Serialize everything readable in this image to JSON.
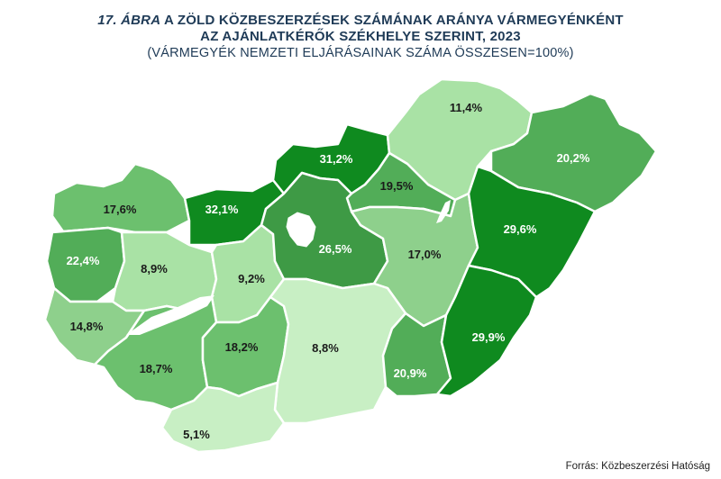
{
  "title": {
    "number": "17. ÁBRA",
    "line1_rest": " A ZÖLD KÖZBESZERZÉSEK SZÁMÁNAK ARÁNYA VÁRMEGYÉNKÉNT",
    "line2": "AZ AJÁNLATKÉRŐK SZÉKHELYE SZERINT, 2023",
    "subtitle": "(VÁRMEGYÉK NEMZETI ELJÁRÁSAINAK SZÁMA ÖSSZESEN=100%)"
  },
  "source": "Forrás: Közbeszerzési Hatóság",
  "colors": {
    "shade_1": "#c8efc4",
    "shade_2": "#a9e2a5",
    "shade_3": "#8ed08c",
    "shade_4": "#6cc06e",
    "shade_5": "#52ad58",
    "shade_6": "#3e9a45",
    "shade_7": "#0f8a1f",
    "dark_label": "#1a1a1a",
    "light_label": "#ffffff",
    "budapest": "#ffffff",
    "lake": "#ffffff"
  },
  "counties": [
    {
      "id": "gyor",
      "value": "17,6%",
      "shade": "shade_4",
      "label_color": "dark_label"
    },
    {
      "id": "komarom",
      "value": "32,1%",
      "shade": "shade_7",
      "label_color": "light_label"
    },
    {
      "id": "nograd",
      "value": "31,2%",
      "shade": "shade_7",
      "label_color": "light_label"
    },
    {
      "id": "borsod",
      "value": "11,4%",
      "shade": "shade_2",
      "label_color": "dark_label"
    },
    {
      "id": "szabolcs",
      "value": "20,2%",
      "shade": "shade_5",
      "label_color": "light_label"
    },
    {
      "id": "heves",
      "value": "19,5%",
      "shade": "shade_5",
      "label_color": "dark_label"
    },
    {
      "id": "vas",
      "value": "22,4%",
      "shade": "shade_5",
      "label_color": "light_label"
    },
    {
      "id": "veszprem",
      "value": "8,9%",
      "shade": "shade_2",
      "label_color": "dark_label"
    },
    {
      "id": "fejer",
      "value": "9,2%",
      "shade": "shade_2",
      "label_color": "dark_label"
    },
    {
      "id": "pest",
      "value": "26,5%",
      "shade": "shade_6",
      "label_color": "light_label"
    },
    {
      "id": "jasz",
      "value": "17,0%",
      "shade": "shade_3",
      "label_color": "dark_label"
    },
    {
      "id": "hajdu",
      "value": "29,6%",
      "shade": "shade_7",
      "label_color": "light_label"
    },
    {
      "id": "zala",
      "value": "14,8%",
      "shade": "shade_3",
      "label_color": "dark_label"
    },
    {
      "id": "somogy",
      "value": "18,7%",
      "shade": "shade_4",
      "label_color": "dark_label"
    },
    {
      "id": "tolna",
      "value": "18,2%",
      "shade": "shade_4",
      "label_color": "dark_label"
    },
    {
      "id": "bacs",
      "value": "8,8%",
      "shade": "shade_1",
      "label_color": "dark_label"
    },
    {
      "id": "csongrad",
      "value": "20,9%",
      "shade": "shade_5",
      "label_color": "light_label"
    },
    {
      "id": "bekes",
      "value": "29,9%",
      "shade": "shade_7",
      "label_color": "light_label"
    },
    {
      "id": "baranya",
      "value": "5,1%",
      "shade": "shade_1",
      "label_color": "dark_label"
    }
  ]
}
